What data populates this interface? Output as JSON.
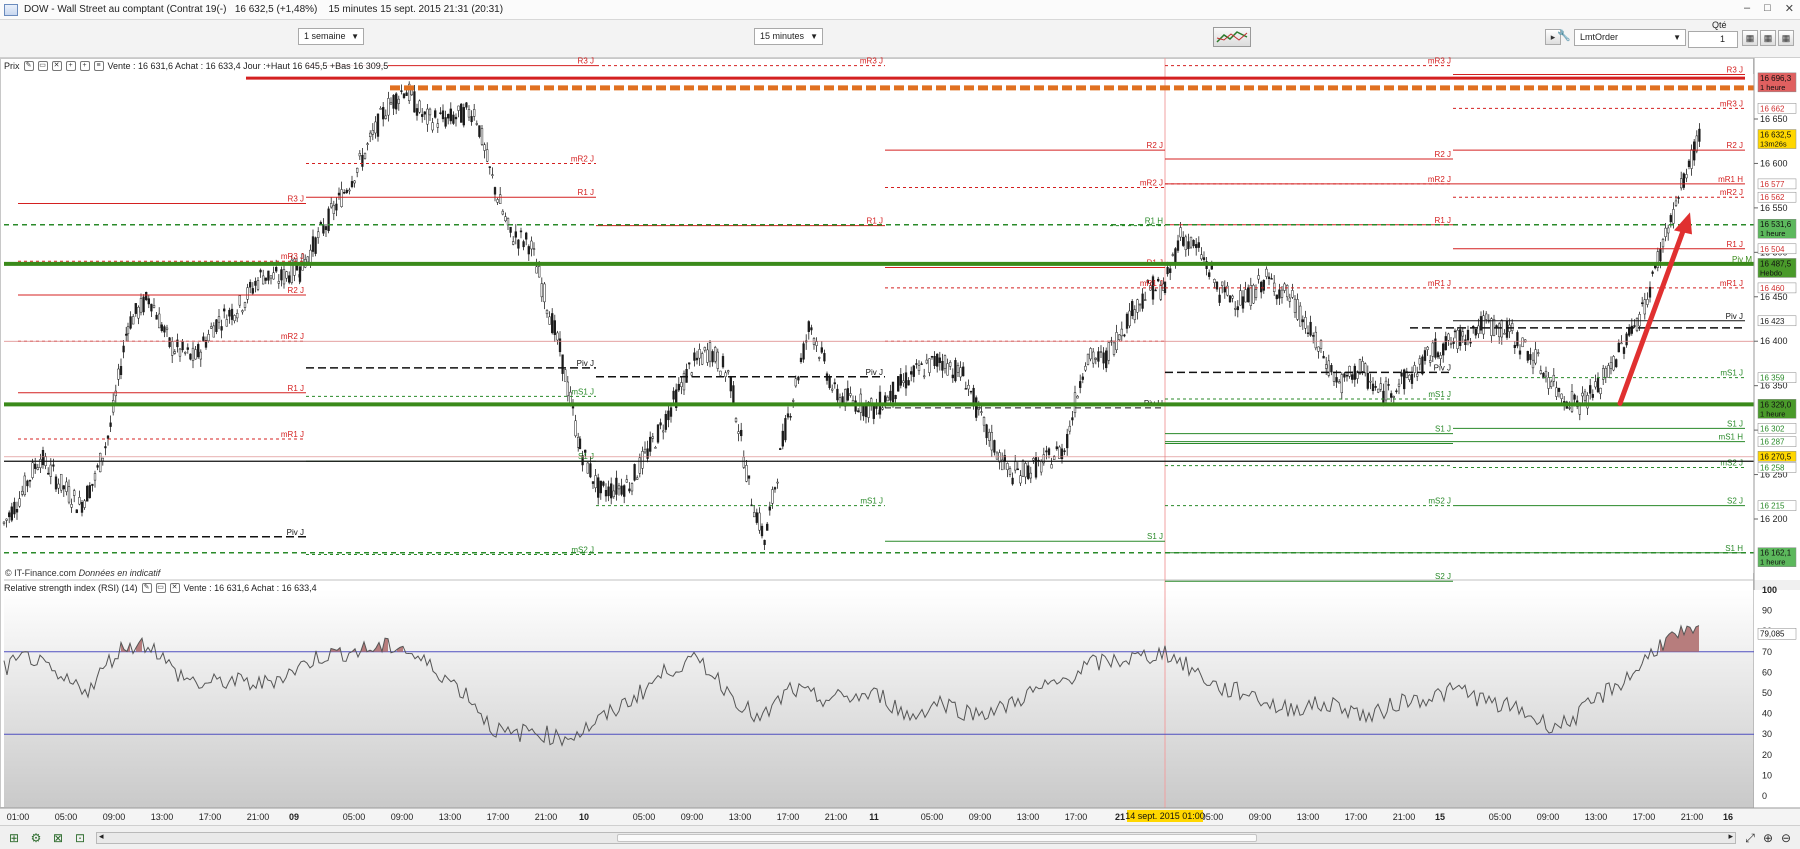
{
  "window": {
    "title_instrument": "DOW - Wall Street au comptant (Contrat 19(-)",
    "title_quote": "16 632,5 (+1,48%)",
    "title_period": "15 minutes  15 sept. 2015 21:31 (20:31)",
    "controls": [
      "–",
      "□",
      "✕"
    ]
  },
  "toolbar": {
    "range_select": "1 semaine",
    "interval_select": "15 minutes",
    "order_type": "LmtOrder",
    "qty_label": "Qté",
    "qty_value": "1"
  },
  "price_pane": {
    "name": "Prix",
    "info": "Vente : 16 631,6 Achat : 16 633,4 Jour :+Haut 16 645,5 +Bas 16 309,5",
    "credit_source": "© IT-Finance.com",
    "credit_note": "Données en indicatif",
    "axis_ticks": [
      "16 650",
      "16 600",
      "16 550",
      "16 500",
      "16 450",
      "16 400",
      "16 350",
      "16 300",
      "16 250",
      "16 200"
    ],
    "badges": [
      {
        "value": "16 696,3",
        "sub": "1 heure",
        "color": "#e06060"
      },
      {
        "value": "16 662",
        "color": "#ffffff",
        "text": "#d03030"
      },
      {
        "value": "16 632,5",
        "sub": "13m26s",
        "color": "#ffd700"
      },
      {
        "value": "16 577",
        "color": "#ffffff",
        "text": "#d03030"
      },
      {
        "value": "16 562",
        "color": "#ffffff",
        "text": "#d03030"
      },
      {
        "value": "16 531,6",
        "sub": "1 heure",
        "color": "#5cb85c"
      },
      {
        "value": "16 504",
        "color": "#ffffff",
        "text": "#d03030"
      },
      {
        "value": "16 487,5",
        "sub": "Hebdo",
        "color": "#4a9a2a"
      },
      {
        "value": "16 460",
        "color": "#ffffff",
        "text": "#d03030"
      },
      {
        "value": "16 423",
        "color": "#ffffff",
        "text": "#222222"
      },
      {
        "value": "16 359",
        "color": "#ffffff",
        "text": "#2a8a2a"
      },
      {
        "value": "16 329,0",
        "sub": "1 heure",
        "color": "#4a9a2a"
      },
      {
        "value": "16 302",
        "color": "#ffffff",
        "text": "#2a8a2a"
      },
      {
        "value": "16 287",
        "color": "#ffffff",
        "text": "#2a8a2a"
      },
      {
        "value": "16 270,5",
        "color": "#ffd700"
      },
      {
        "value": "16 258",
        "color": "#ffffff",
        "text": "#2a8a2a"
      },
      {
        "value": "16 215",
        "color": "#ffffff",
        "text": "#2a8a2a"
      },
      {
        "value": "16 162,1",
        "sub": "1 heure",
        "color": "#5cb85c"
      }
    ],
    "level_labels": [
      "R3 J",
      "mR3 J",
      "R2 J",
      "mR2 J",
      "R1 J",
      "mR1 J",
      "Piv J",
      "mS1 J",
      "S1 J",
      "mS2 J",
      "S2 J",
      "R1 H",
      "mR1 H",
      "Piv H",
      "mS1 H",
      "S1 H",
      "Piv M"
    ]
  },
  "rsi_pane": {
    "name": "Relative strength index (RSI) (14)",
    "info": "Vente : 16 631,6 Achat : 16 633,4",
    "axis_ticks": [
      "100",
      "90",
      "80",
      "70",
      "60",
      "50",
      "40",
      "30",
      "20",
      "10",
      "0"
    ],
    "current_badge": "79,085"
  },
  "time_axis": {
    "labels": [
      "01:00",
      "05:00",
      "09:00",
      "13:00",
      "17:00",
      "21:00",
      "09",
      "05:00",
      "09:00",
      "13:00",
      "17:00",
      "21:00",
      "10",
      "05:00",
      "09:00",
      "13:00",
      "17:00",
      "21:00",
      "11",
      "05:00",
      "09:00",
      "13:00",
      "17:00",
      "21",
      "05:00",
      "09:00",
      "13:00",
      "17:00",
      "21:00",
      "15",
      "05:00",
      "09:00",
      "13:00",
      "17:00",
      "21:00",
      "16"
    ],
    "cursor_label": "14 sept. 2015 01:00"
  },
  "colors": {
    "resistance": "#d42020",
    "support": "#2a8a2a",
    "pivot": "#111111",
    "weekly_level": "#3a8a1a",
    "hourly_high": "#e07020",
    "rsi_line": "#555555",
    "rsi_bounds": "#5050c0",
    "arrow": "#e03030"
  },
  "icons": {
    "wrench": "wrench-icon",
    "scroll_left": "chevron-left-icon",
    "scroll_right": "chevron-right-icon",
    "zoom_in": "zoom-in-icon",
    "zoom_out": "zoom-out-icon"
  }
}
